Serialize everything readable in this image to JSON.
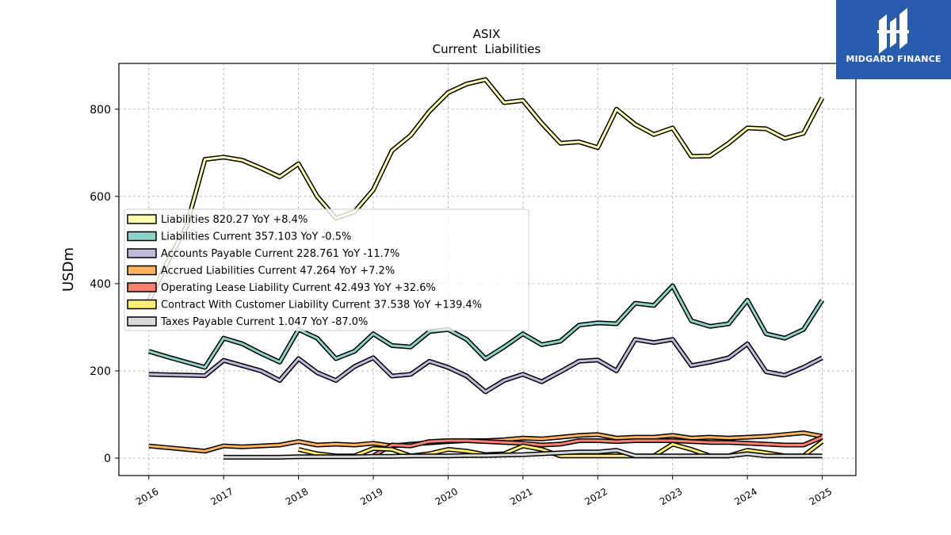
{
  "logo": {
    "text": "MIDGARD FINANCE",
    "background": "#2a5cad"
  },
  "chart_data": {
    "type": "line",
    "title": "ASIX",
    "subtitle": "Current  Liabilities",
    "ylabel": "USDm",
    "xlabel": "",
    "ylim": [
      -40,
      905
    ],
    "xlim": [
      2015.6,
      2025.45
    ],
    "yticks": [
      0,
      200,
      400,
      600,
      800
    ],
    "xticks": [
      2016,
      2017,
      2018,
      2019,
      2020,
      2021,
      2022,
      2023,
      2024,
      2025
    ],
    "grid": true,
    "legend_position": "center-left",
    "series": [
      {
        "name": "Liabilities  820.27 YoY +8.4%",
        "color": "#ffffb3",
        "points": [
          [
            2016.0,
            360
          ],
          [
            2016.25,
            450
          ],
          [
            2016.5,
            530
          ],
          [
            2016.75,
            685
          ],
          [
            2017.0,
            690
          ],
          [
            2017.25,
            683
          ],
          [
            2017.5,
            665
          ],
          [
            2017.75,
            645
          ],
          [
            2018.0,
            675
          ],
          [
            2018.25,
            600
          ],
          [
            2018.5,
            550
          ],
          [
            2018.75,
            565
          ],
          [
            2019.0,
            615
          ],
          [
            2019.25,
            705
          ],
          [
            2019.5,
            740
          ],
          [
            2019.75,
            795
          ],
          [
            2020.0,
            838
          ],
          [
            2020.25,
            858
          ],
          [
            2020.5,
            868
          ],
          [
            2020.75,
            815
          ],
          [
            2021.0,
            820
          ],
          [
            2021.25,
            768
          ],
          [
            2021.5,
            722
          ],
          [
            2021.75,
            725
          ],
          [
            2022.0,
            712
          ],
          [
            2022.25,
            800
          ],
          [
            2022.5,
            765
          ],
          [
            2022.75,
            742
          ],
          [
            2023.0,
            757
          ],
          [
            2023.25,
            692
          ],
          [
            2023.5,
            693
          ],
          [
            2023.75,
            722
          ],
          [
            2024.0,
            757
          ],
          [
            2024.25,
            755
          ],
          [
            2024.5,
            733
          ],
          [
            2024.75,
            745
          ],
          [
            2025.0,
            826
          ]
        ]
      },
      {
        "name": "Liabilities Current  357.103 YoY -0.5%",
        "color": "#8dd3c7",
        "points": [
          [
            2016.0,
            245
          ],
          [
            2016.25,
            232
          ],
          [
            2016.5,
            220
          ],
          [
            2016.75,
            208
          ],
          [
            2017.0,
            275
          ],
          [
            2017.25,
            262
          ],
          [
            2017.5,
            240
          ],
          [
            2017.75,
            220
          ],
          [
            2018.0,
            295
          ],
          [
            2018.25,
            275
          ],
          [
            2018.5,
            228
          ],
          [
            2018.75,
            245
          ],
          [
            2019.0,
            285
          ],
          [
            2019.25,
            258
          ],
          [
            2019.5,
            255
          ],
          [
            2019.75,
            290
          ],
          [
            2020.0,
            295
          ],
          [
            2020.25,
            272
          ],
          [
            2020.5,
            228
          ],
          [
            2020.75,
            255
          ],
          [
            2021.0,
            285
          ],
          [
            2021.25,
            260
          ],
          [
            2021.5,
            268
          ],
          [
            2021.75,
            305
          ],
          [
            2022.0,
            310
          ],
          [
            2022.25,
            308
          ],
          [
            2022.5,
            355
          ],
          [
            2022.75,
            350
          ],
          [
            2023.0,
            395
          ],
          [
            2023.25,
            315
          ],
          [
            2023.5,
            302
          ],
          [
            2023.75,
            308
          ],
          [
            2024.0,
            362
          ],
          [
            2024.25,
            285
          ],
          [
            2024.5,
            275
          ],
          [
            2024.75,
            295
          ],
          [
            2025.0,
            362
          ]
        ]
      },
      {
        "name": "Accounts Payable Current  228.761 YoY -11.7%",
        "color": "#bebada",
        "points": [
          [
            2016.0,
            192
          ],
          [
            2016.25,
            191
          ],
          [
            2016.5,
            190
          ],
          [
            2016.75,
            189
          ],
          [
            2017.0,
            224
          ],
          [
            2017.25,
            212
          ],
          [
            2017.5,
            200
          ],
          [
            2017.75,
            178
          ],
          [
            2018.0,
            228
          ],
          [
            2018.25,
            196
          ],
          [
            2018.5,
            178
          ],
          [
            2018.75,
            210
          ],
          [
            2019.0,
            230
          ],
          [
            2019.25,
            188
          ],
          [
            2019.5,
            192
          ],
          [
            2019.75,
            222
          ],
          [
            2020.0,
            208
          ],
          [
            2020.25,
            188
          ],
          [
            2020.5,
            152
          ],
          [
            2020.75,
            178
          ],
          [
            2021.0,
            192
          ],
          [
            2021.25,
            175
          ],
          [
            2021.5,
            198
          ],
          [
            2021.75,
            222
          ],
          [
            2022.0,
            225
          ],
          [
            2022.25,
            200
          ],
          [
            2022.5,
            272
          ],
          [
            2022.75,
            265
          ],
          [
            2023.0,
            272
          ],
          [
            2023.25,
            212
          ],
          [
            2023.5,
            220
          ],
          [
            2023.75,
            230
          ],
          [
            2024.0,
            262
          ],
          [
            2024.25,
            198
          ],
          [
            2024.5,
            190
          ],
          [
            2024.75,
            208
          ],
          [
            2025.0,
            230
          ]
        ]
      },
      {
        "name": "Accrued Liabilities Current  47.264 YoY +7.2%",
        "color": "#fdb462",
        "points": [
          [
            2016.0,
            28
          ],
          [
            2016.25,
            24
          ],
          [
            2016.5,
            20
          ],
          [
            2016.75,
            16
          ],
          [
            2017.0,
            28
          ],
          [
            2017.25,
            26
          ],
          [
            2017.5,
            28
          ],
          [
            2017.75,
            30
          ],
          [
            2018.0,
            38
          ],
          [
            2018.25,
            30
          ],
          [
            2018.5,
            32
          ],
          [
            2018.75,
            30
          ],
          [
            2019.0,
            34
          ],
          [
            2019.25,
            28
          ],
          [
            2019.5,
            32
          ],
          [
            2019.75,
            35
          ],
          [
            2020.0,
            38
          ],
          [
            2020.25,
            40
          ],
          [
            2020.5,
            40
          ],
          [
            2020.75,
            42
          ],
          [
            2021.0,
            46
          ],
          [
            2021.25,
            44
          ],
          [
            2021.5,
            48
          ],
          [
            2021.75,
            52
          ],
          [
            2022.0,
            54
          ],
          [
            2022.25,
            46
          ],
          [
            2022.5,
            48
          ],
          [
            2022.75,
            48
          ],
          [
            2023.0,
            52
          ],
          [
            2023.25,
            46
          ],
          [
            2023.5,
            48
          ],
          [
            2023.75,
            46
          ],
          [
            2024.0,
            48
          ],
          [
            2024.25,
            50
          ],
          [
            2024.5,
            54
          ],
          [
            2024.75,
            58
          ],
          [
            2025.0,
            50
          ]
        ]
      },
      {
        "name": "Operating Lease Liability Current  42.493 YoY +32.6%",
        "color": "#fb8072",
        "points": [
          [
            2019.0,
            5
          ],
          [
            2019.25,
            30
          ],
          [
            2019.5,
            28
          ],
          [
            2019.75,
            38
          ],
          [
            2020.0,
            40
          ],
          [
            2020.25,
            40
          ],
          [
            2020.5,
            38
          ],
          [
            2020.75,
            36
          ],
          [
            2021.0,
            34
          ],
          [
            2021.25,
            30
          ],
          [
            2021.5,
            32
          ],
          [
            2021.75,
            40
          ],
          [
            2022.0,
            40
          ],
          [
            2022.25,
            38
          ],
          [
            2022.5,
            40
          ],
          [
            2022.75,
            40
          ],
          [
            2023.0,
            40
          ],
          [
            2023.25,
            38
          ],
          [
            2023.5,
            36
          ],
          [
            2023.75,
            36
          ],
          [
            2024.0,
            34
          ],
          [
            2024.25,
            32
          ],
          [
            2024.5,
            30
          ],
          [
            2024.75,
            30
          ],
          [
            2025.0,
            48
          ]
        ]
      },
      {
        "name": "Contract With Customer Liability Current  37.538 YoY +139.4%",
        "color": "#ffed6f",
        "points": [
          [
            2018.0,
            20
          ],
          [
            2018.25,
            10
          ],
          [
            2018.5,
            5
          ],
          [
            2018.75,
            5
          ],
          [
            2019.0,
            22
          ],
          [
            2019.25,
            20
          ],
          [
            2019.5,
            5
          ],
          [
            2019.75,
            10
          ],
          [
            2020.0,
            20
          ],
          [
            2020.25,
            16
          ],
          [
            2020.5,
            8
          ],
          [
            2020.75,
            10
          ],
          [
            2021.0,
            28
          ],
          [
            2021.25,
            20
          ],
          [
            2021.5,
            5
          ],
          [
            2021.75,
            5
          ],
          [
            2022.0,
            5
          ],
          [
            2022.25,
            5
          ],
          [
            2022.5,
            5
          ],
          [
            2022.75,
            5
          ],
          [
            2023.0,
            32
          ],
          [
            2023.25,
            20
          ],
          [
            2023.5,
            5
          ],
          [
            2023.75,
            5
          ],
          [
            2024.0,
            18
          ],
          [
            2024.25,
            12
          ],
          [
            2024.5,
            5
          ],
          [
            2024.75,
            5
          ],
          [
            2025.0,
            38
          ]
        ]
      },
      {
        "name": "Taxes Payable Current  1.047 YoY -87.0%",
        "color": "#d9d9d9",
        "points": [
          [
            2017.0,
            2
          ],
          [
            2017.25,
            2
          ],
          [
            2017.5,
            2
          ],
          [
            2017.75,
            2
          ],
          [
            2018.0,
            3
          ],
          [
            2018.25,
            3
          ],
          [
            2018.5,
            3
          ],
          [
            2018.75,
            3
          ],
          [
            2019.0,
            4
          ],
          [
            2019.25,
            4
          ],
          [
            2019.5,
            5
          ],
          [
            2019.75,
            5
          ],
          [
            2020.0,
            5
          ],
          [
            2020.25,
            6
          ],
          [
            2020.5,
            6
          ],
          [
            2020.75,
            7
          ],
          [
            2021.0,
            8
          ],
          [
            2021.25,
            10
          ],
          [
            2021.5,
            12
          ],
          [
            2021.75,
            14
          ],
          [
            2022.0,
            14
          ],
          [
            2022.25,
            18
          ],
          [
            2022.5,
            5
          ],
          [
            2022.75,
            5
          ],
          [
            2023.0,
            5
          ],
          [
            2023.25,
            5
          ],
          [
            2023.5,
            5
          ],
          [
            2023.75,
            5
          ],
          [
            2024.0,
            10
          ],
          [
            2024.25,
            5
          ],
          [
            2024.5,
            5
          ],
          [
            2024.75,
            5
          ],
          [
            2025.0,
            5
          ]
        ]
      }
    ]
  }
}
